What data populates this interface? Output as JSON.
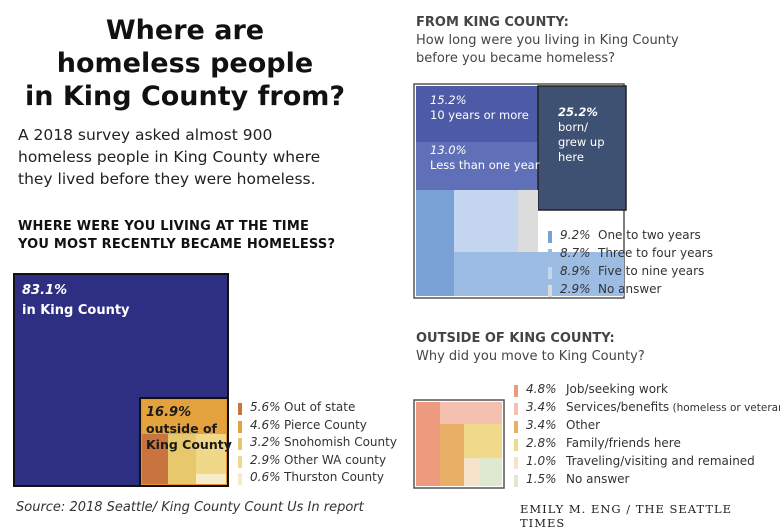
{
  "title_lines": [
    "Where are",
    "homeless people",
    "in King County from?"
  ],
  "intro": "A 2018 survey asked almost 900 homeless people in King County where they lived before they were homeless.",
  "left_question": "WHERE WERE YOU LIVING AT THE TIME YOU MOST RECENTLY BECAME HOMELESS?",
  "source": "Source: 2018 Seattle/ King County Count Us In report",
  "credit": "EMILY M. ENG / THE SEATTLE TIMES",
  "right_top": {
    "heading": "FROM KING COUNTY:",
    "question_lines": [
      "How long were you living in King County",
      "before you became homeless?"
    ]
  },
  "right_bottom": {
    "heading": "OUTSIDE OF KING COUNTY:",
    "question": "Why did you move to King County?"
  },
  "colors": {
    "navy": "#2e2f82",
    "orange": "#e29430",
    "slate": "#3f5173",
    "blue_mid": "#5c6ab0",
    "salmon": "#ec9b7f"
  },
  "chart_data": [
    {
      "type": "treemap",
      "question": "WHERE WERE YOU LIVING AT THE TIME YOU MOST RECENTLY BECAME HOMELESS?",
      "series": [
        {
          "name": "in King County",
          "value": 83.1,
          "color": "#2e2f82"
        },
        {
          "name": "outside of King County",
          "value": 16.9,
          "color": "#e29430",
          "breakdown": [
            {
              "name": "Out of state",
              "value": 5.6,
              "color": "#c9743f"
            },
            {
              "name": "Pierce County",
              "value": 4.6,
              "color": "#e3a23d"
            },
            {
              "name": "Snohomish County",
              "value": 3.2,
              "color": "#e8c86c"
            },
            {
              "name": "Other WA county",
              "value": 2.9,
              "color": "#f0d889"
            },
            {
              "name": "Thurston County",
              "value": 0.6,
              "color": "#f6ebcb"
            }
          ]
        }
      ],
      "labels": [
        {
          "value": "83.1%",
          "name": "in King County"
        },
        {
          "value": "16.9%",
          "name_lines": [
            "outside of",
            "King County"
          ]
        }
      ]
    },
    {
      "type": "treemap",
      "question": "How long were you living in King County before you became homeless?",
      "series": [
        {
          "name": "10 years or more",
          "value": 15.2,
          "color": "#4d5aa5"
        },
        {
          "name": "Less than one year",
          "value": 13.0,
          "color": "#6070b8"
        },
        {
          "name": "born/ grew up here",
          "value": 25.2,
          "color": "#3f5173"
        },
        {
          "name": "One to two years",
          "value": 9.2,
          "color": "#7aa1d6"
        },
        {
          "name": "Three to four years",
          "value": 8.7,
          "color": "#9dbce4"
        },
        {
          "name": "Five to nine years",
          "value": 8.9,
          "color": "#c3d5ef"
        },
        {
          "name": "No answer",
          "value": 2.9,
          "color": "#dcdcdc"
        }
      ],
      "labels": [
        {
          "value": "15.2%",
          "name": "10 years or more"
        },
        {
          "value": "13.0%",
          "name": "Less than one year"
        },
        {
          "value": "25.2%",
          "name_lines": [
            "born/",
            "grew up",
            "here"
          ]
        }
      ]
    },
    {
      "type": "treemap",
      "question": "Why did you move to King County?",
      "series": [
        {
          "name": "Job/seeking work",
          "value": 4.8,
          "color": "#ec9b7f"
        },
        {
          "name": "Services/benefits",
          "note": "(homeless or veteran)",
          "value": 3.4,
          "color": "#f6c0b0"
        },
        {
          "name": "Other",
          "value": 3.4,
          "color": "#e7b066"
        },
        {
          "name": "Family/friends here",
          "value": 2.8,
          "color": "#f0d98a"
        },
        {
          "name": "Traveling/visiting and remained",
          "value": 1.0,
          "color": "#f6e3c9"
        },
        {
          "name": "No answer",
          "value": 1.5,
          "color": "#dfe9cf"
        }
      ]
    }
  ]
}
